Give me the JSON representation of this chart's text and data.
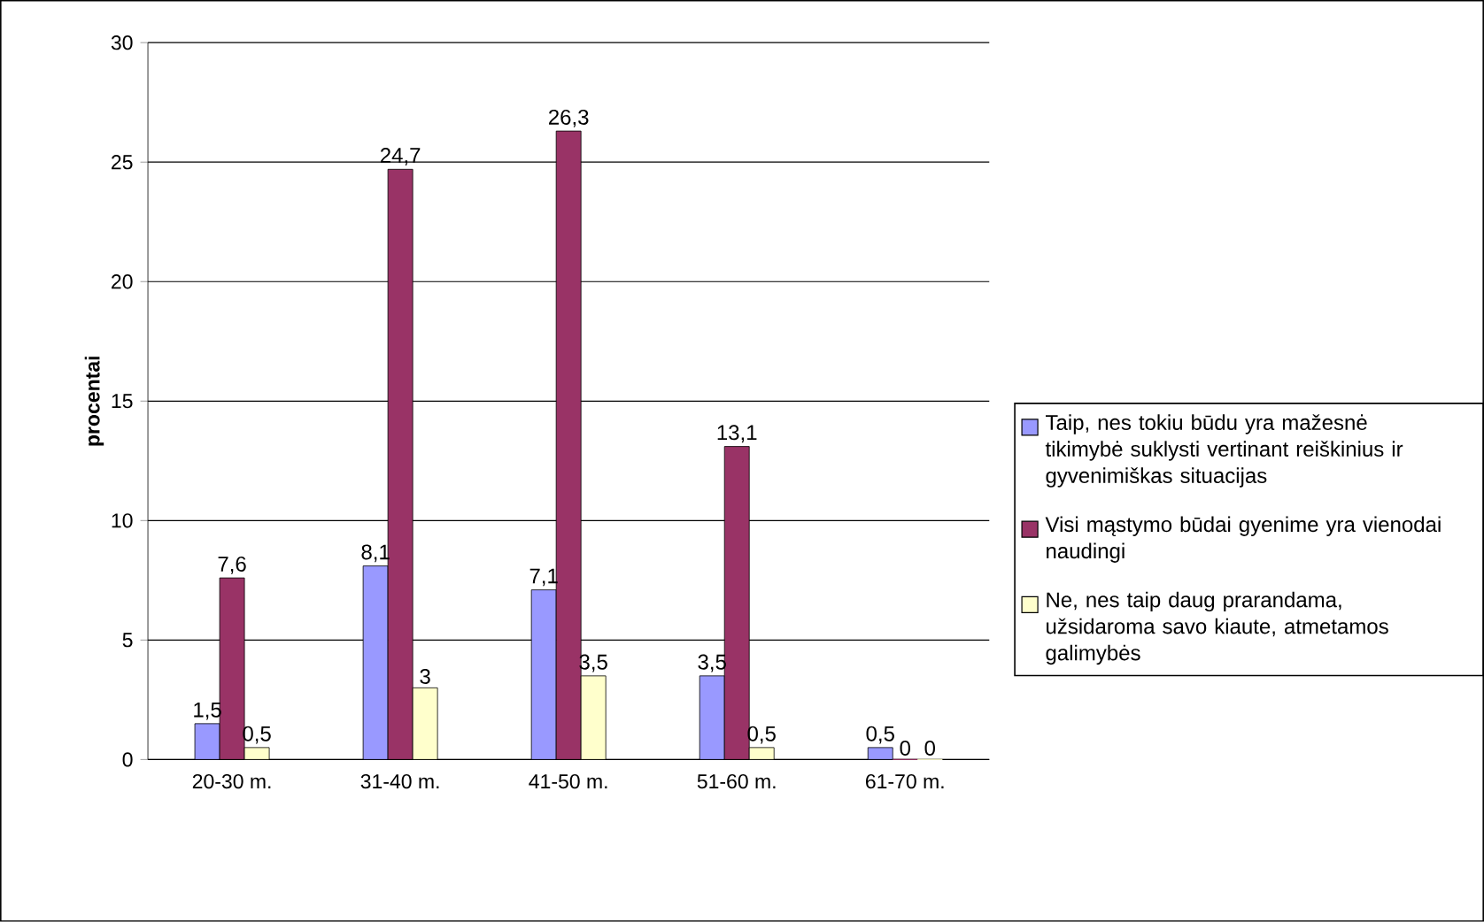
{
  "chart_data": {
    "type": "bar",
    "ylabel": "procentai",
    "categories": [
      "20-30 m.",
      "31-40 m.",
      "41-50 m.",
      "51-60 m.",
      "61-70 m."
    ],
    "series": [
      {
        "name": "Taip, nes tokiu būdu yra mažesnė tikimybė suklysti vertinant reiškinius ir gyvenimiškas situacijas",
        "color": "#9999ff",
        "values": [
          1.5,
          8.1,
          7.1,
          3.5,
          0.5
        ],
        "value_labels": [
          "1,5",
          "8,1",
          "7,1",
          "3,5",
          "0,5"
        ]
      },
      {
        "name": "Visi mąstymo būdai gyenime yra vienodai naudingi",
        "color": "#993366",
        "values": [
          7.6,
          24.7,
          26.3,
          13.1,
          0
        ],
        "value_labels": [
          "7,6",
          "24,7",
          "26,3",
          "13,1",
          "0"
        ]
      },
      {
        "name": "Ne, nes taip daug prarandama, užsidaroma savo kiaute, atmetamos galimybės",
        "color": "#ffffcc",
        "values": [
          0.5,
          3,
          3.5,
          0.5,
          0
        ],
        "value_labels": [
          "0,5",
          "3",
          "3,5",
          "0,5",
          "0"
        ]
      }
    ],
    "ylim": [
      0,
      30
    ],
    "yticks": [
      0,
      5,
      10,
      15,
      20,
      25,
      30
    ],
    "grid": "y",
    "legend": "right"
  }
}
